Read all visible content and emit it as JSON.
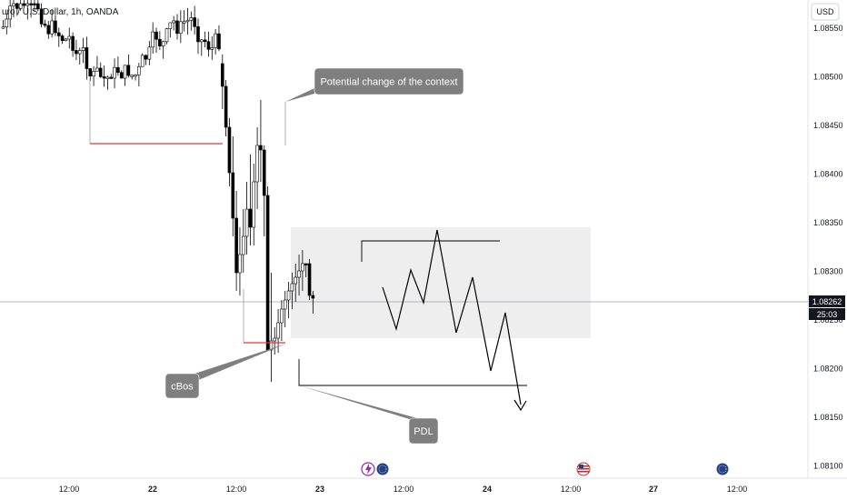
{
  "header": {
    "symbol_title": "uro / U.S. Dollar, 1h, OANDA"
  },
  "price_axis": {
    "currency": "USD",
    "current_price": "1.08262",
    "countdown": "25:03"
  },
  "chart_data": {
    "type": "candlestick",
    "y_ticks": [
      "1.08550",
      "1.08500",
      "1.08450",
      "1.08400",
      "1.08350",
      "1.08300",
      "1.08250",
      "1.08200",
      "1.08150",
      "1.08100"
    ],
    "x_ticks": [
      "12:00",
      "22",
      "12:00",
      "23",
      "12:00",
      "24",
      "12:00",
      "27",
      "12:00"
    ],
    "ylim": [
      1.0808,
      1.0857
    ],
    "annotations": [
      {
        "name": "potential-change-callout",
        "text": "Potential change of the context"
      },
      {
        "name": "cbos-callout",
        "text": "cBos"
      },
      {
        "name": "pdl-callout",
        "text": "PDL"
      }
    ],
    "colors": {
      "bull": "#ffffff",
      "bear": "#000000",
      "outline": "#000000",
      "level_red": "#e53935",
      "callout_bg": "#7f7f7f",
      "zone": "#eeeeee"
    }
  }
}
